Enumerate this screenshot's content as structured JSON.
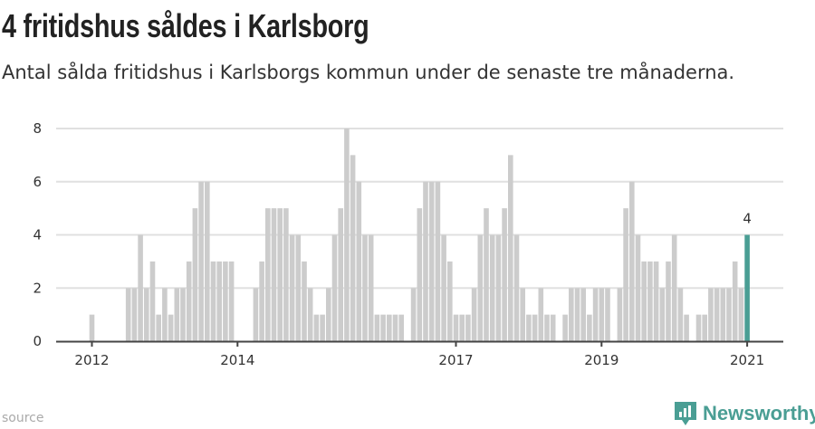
{
  "header": {
    "title": "4 fritidshus såldes i Karlsborg",
    "subtitle": "Antal sålda fritidshus i Karlsborgs kommun under de senaste tre månaderna."
  },
  "footer": {
    "source_label": "source",
    "brand": "Newsworthy"
  },
  "colors": {
    "bar": "#cccccc",
    "highlight": "#4a9e94",
    "grid": "#e0e0e0",
    "axis": "#444444"
  },
  "chart_data": {
    "type": "bar",
    "title": "4 fritidshus såldes i Karlsborg",
    "xlabel": "",
    "ylabel": "",
    "x_start": "2012-01",
    "x_interval": "month",
    "values": [
      1,
      0,
      0,
      0,
      0,
      0,
      2,
      2,
      4,
      2,
      3,
      1,
      2,
      1,
      2,
      2,
      3,
      5,
      6,
      6,
      3,
      3,
      3,
      3,
      0,
      0,
      0,
      2,
      3,
      5,
      5,
      5,
      5,
      4,
      4,
      3,
      2,
      1,
      1,
      2,
      4,
      5,
      8,
      7,
      6,
      4,
      4,
      1,
      1,
      1,
      1,
      1,
      0,
      2,
      5,
      6,
      6,
      6,
      4,
      3,
      1,
      1,
      1,
      2,
      4,
      5,
      4,
      4,
      5,
      7,
      4,
      2,
      1,
      1,
      2,
      1,
      1,
      0,
      1,
      2,
      2,
      2,
      1,
      2,
      2,
      2,
      0,
      2,
      5,
      6,
      4,
      3,
      3,
      3,
      2,
      3,
      4,
      2,
      1,
      0,
      1,
      1,
      2,
      2,
      2,
      2,
      3,
      2,
      4
    ],
    "highlight_last": true,
    "last_value_label": "4",
    "ylim": [
      0,
      8
    ],
    "yticks": [
      "0",
      "2",
      "4",
      "6",
      "8"
    ],
    "xticks": [
      {
        "label": "2012",
        "month_index": 0
      },
      {
        "label": "2014",
        "month_index": 24
      },
      {
        "label": "2017",
        "month_index": 60
      },
      {
        "label": "2019",
        "month_index": 84
      },
      {
        "label": "2021",
        "month_index": 108
      }
    ],
    "grid": true
  }
}
